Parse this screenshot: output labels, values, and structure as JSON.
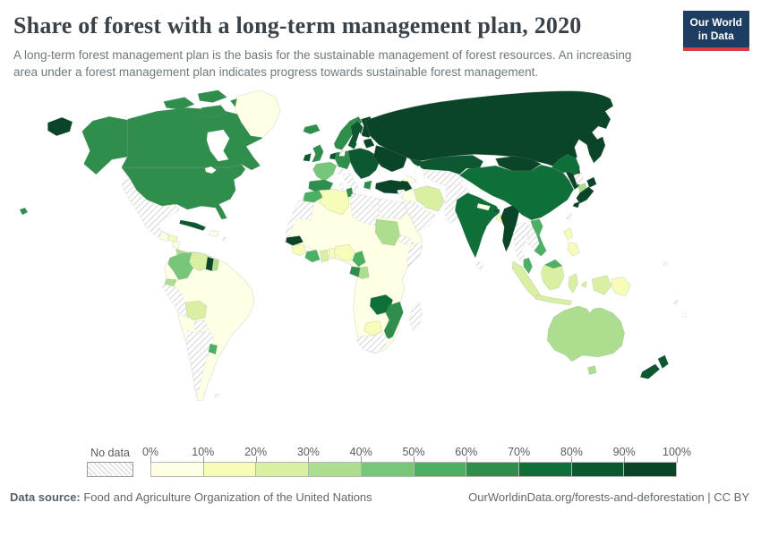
{
  "header": {
    "title": "Share of forest with a long-term management plan, 2020",
    "subtitle": "A long-term forest management plan is the basis for the sustainable management of forest resources. An increasing area under a forest management plan indicates progress towards sustainable forest management.",
    "logo": {
      "line1": "Our World",
      "line2": "in Data",
      "bg_color": "#1d3d63",
      "bar_color": "#d93d3d"
    }
  },
  "legend": {
    "no_data_label": "No data",
    "ticks": [
      "0%",
      "10%",
      "20%",
      "30%",
      "40%",
      "50%",
      "60%",
      "70%",
      "80%",
      "90%",
      "100%"
    ]
  },
  "footer": {
    "source_label": "Data source:",
    "source_text": " Food and Agriculture Organization of the United Nations",
    "right_text": "OurWorldinData.org/forests-and-deforestation | CC BY"
  },
  "chart_data": {
    "type": "choropleth-map",
    "title": "Share of forest with a long-term management plan, 2020",
    "unit": "%",
    "bin_ranges": [
      "0-10%",
      "10-20%",
      "20-30%",
      "30-40%",
      "40-50%",
      "50-60%",
      "60-70%",
      "70-80%",
      "80-90%",
      "90-100%"
    ],
    "palette": [
      "#ffffe5",
      "#f7fcb9",
      "#d9f0a3",
      "#addd8e",
      "#78c679",
      "#4bb062",
      "#2f8e4b",
      "#0e6f38",
      "#0d5731",
      "#0b4527"
    ],
    "no_data_pattern": "gray-diagonal-hatch",
    "regions": {
      "usa": 6,
      "canada": 6,
      "greenland": 0,
      "iceland": 6,
      "mexico": "nodata",
      "guatemala": 0,
      "honduras": 1,
      "nicaragua": 0,
      "costarica_panama": 3,
      "cuba": 8,
      "hispaniola": 0,
      "antilles": "nodata",
      "colombia": 4,
      "venezuela": 2,
      "guyana": 9,
      "suriname": 3,
      "ecuador": 3,
      "peru": "nodata",
      "south_america_base": 0,
      "bolivia": 2,
      "paraguay": "nodata",
      "argentina": "nodata",
      "uruguay": 5,
      "falklands": "nodata",
      "norway": 6,
      "sweden": 8,
      "finland": 9,
      "denmark": "nodata",
      "uk": 6,
      "ireland": 8,
      "france": 4,
      "iberia": 6,
      "germany": 6,
      "benelux": 8,
      "switzerland": "nodata",
      "italy": "nodata",
      "central_europe": 8,
      "greece": 6,
      "ukraine": 9,
      "baltics": 9,
      "russia": 9,
      "kazakhstan": 8,
      "central_asia": "nodata",
      "afghanistan_pakistan": "nodata",
      "iran": 2,
      "iraq": 0,
      "syria": "nodata",
      "saudi_arabia": "nodata",
      "caucasus": 0,
      "turkey": 9,
      "mongolia": 9,
      "china": 7,
      "north_korea": "nodata",
      "south_korea": 3,
      "japan": 9,
      "india": 7,
      "nepal": 0,
      "bhutan": 8,
      "bangladesh": 1,
      "myanmar": 9,
      "thailand": "nodata",
      "laos_cambodia": "nodata",
      "vietnam": 5,
      "malaysia": 5,
      "indonesia": 2,
      "philippines": 1,
      "taiwan": "nodata",
      "sri_lanka": "nodata",
      "papua_new_guinea": 1,
      "pacific_islands": "nodata",
      "africa_other": 0,
      "morocco": 5,
      "western_sahara_mauritania": "nodata",
      "algeria": 1,
      "tunisia": 6,
      "libya": "nodata",
      "egypt": "nodata",
      "senegal": 9,
      "guinea": 1,
      "cote_divoire": 5,
      "ghana": 2,
      "togo_benin": 1,
      "nigeria": 1,
      "sudan": 3,
      "eritrea": "nodata",
      "somalia": "nodata",
      "cameroon": 5,
      "gabon": 6,
      "congo": 3,
      "zambia": 7,
      "mozambique": 6,
      "botswana": 1,
      "south_africa": "nodata",
      "madagascar": "nodata",
      "australia": 3,
      "new_zealand": 8
    }
  }
}
